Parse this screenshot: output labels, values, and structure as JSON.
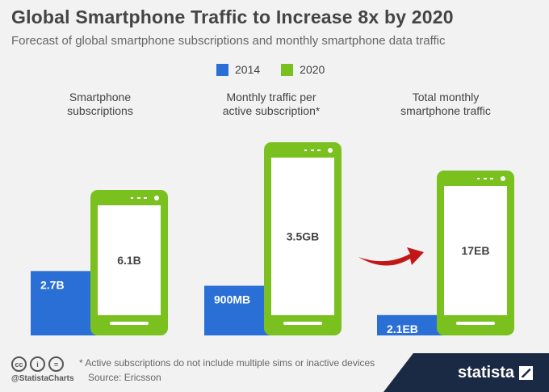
{
  "colors": {
    "y2014": "#2a6fd6",
    "y2020": "#7ac11f",
    "screen": "#ffffff",
    "arrow": "#c31616",
    "brand": "#1b2a44"
  },
  "icons": [
    "cc-icon",
    "attribution-icon",
    "noderivs-icon",
    "statista-logo-icon",
    "curved-arrow-icon",
    "phone-camera-dots-icon"
  ],
  "footer": {
    "footnote": "* Active subscriptions do not include multiple sims or inactive devices",
    "source": "Source: Ericsson",
    "handle": "@StatistaCharts",
    "brand": "statista",
    "cc": [
      "cc",
      "i",
      "="
    ]
  },
  "chart_data": {
    "type": "bar",
    "title": "Global Smartphone Traffic to Increase 8x by 2020",
    "subtitle": "Forecast of global smartphone subscriptions and monthly smartphone data traffic",
    "legend": {
      "position": "top-center",
      "entries": [
        "2014",
        "2020"
      ]
    },
    "categories": [
      {
        "line1": "Smartphone",
        "line2": "subscriptions"
      },
      {
        "line1": "Monthly traffic per",
        "line2": "active subscription*"
      },
      {
        "line1": "Total monthly",
        "line2": "smartphone traffic"
      }
    ],
    "series": [
      {
        "name": "2014",
        "values": [
          2.7,
          0.9,
          2.1
        ],
        "labels": [
          "2.7B",
          "900MB",
          "2.1EB"
        ]
      },
      {
        "name": "2020",
        "values": [
          6.1,
          3.5,
          17
        ],
        "labels": [
          "6.1B",
          "3.5GB",
          "17EB"
        ]
      }
    ],
    "grid": false
  }
}
